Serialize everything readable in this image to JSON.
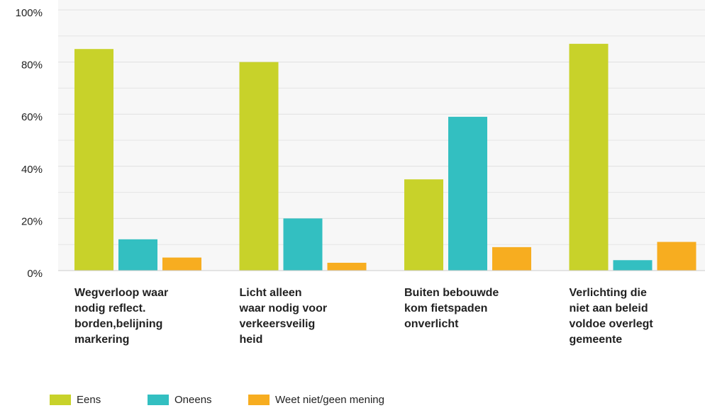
{
  "chart_data": {
    "type": "bar",
    "categories": [
      [
        "Wegverloop waar",
        "nodig reflect.",
        "borden,belijning",
        "markering"
      ],
      [
        "Licht alleen",
        "waar nodig voor",
        "verkeersveilig",
        "heid"
      ],
      [
        "Buiten bebouwde",
        "kom fietspaden",
        "onverlicht"
      ],
      [
        "Verlichting die",
        "niet aan beleid",
        "voldoe overlegt",
        "gemeente"
      ]
    ],
    "series": [
      {
        "name": "Eens",
        "color": "#c8d22a",
        "values": [
          85,
          80,
          35,
          87
        ]
      },
      {
        "name": "Oneens",
        "color": "#33bfc1",
        "values": [
          12,
          20,
          59,
          4
        ]
      },
      {
        "name": "Weet niet/geen mening",
        "color": "#f7ad20",
        "values": [
          5,
          3,
          9,
          11
        ]
      }
    ],
    "ylim": [
      0,
      100
    ],
    "yticks": [
      {
        "value": 0,
        "label": "0%"
      },
      {
        "value": 20,
        "label": "20%"
      },
      {
        "value": 40,
        "label": "40%"
      },
      {
        "value": 60,
        "label": "60%"
      },
      {
        "value": 80,
        "label": "80%"
      },
      {
        "value": 100,
        "label": "100%"
      }
    ],
    "minor_yticks": [
      10,
      30,
      50,
      70,
      90
    ],
    "grid": true,
    "legend": "bottom-left"
  }
}
